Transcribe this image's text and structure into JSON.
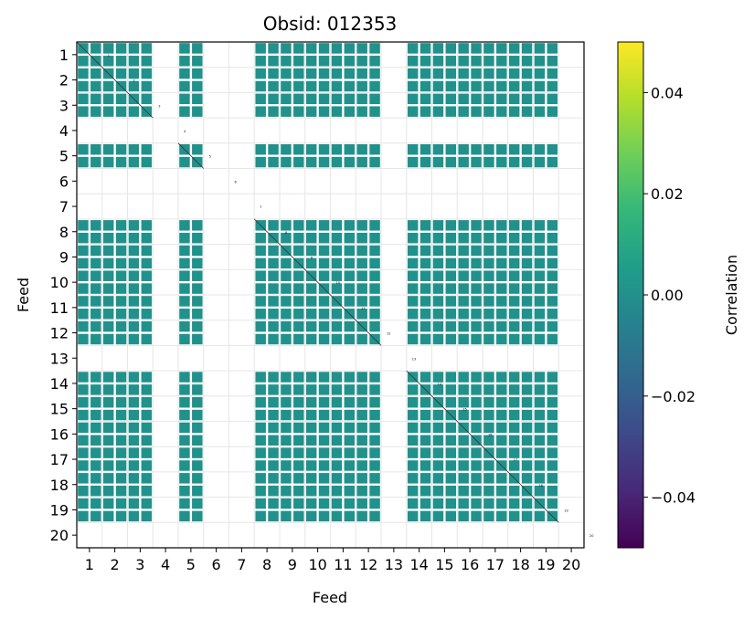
{
  "chart_data": {
    "type": "heatmap",
    "title": "Obsid: 012353",
    "xlabel": "Feed",
    "ylabel": "Feed",
    "x_ticks": [
      "1",
      "2",
      "3",
      "4",
      "5",
      "6",
      "7",
      "8",
      "9",
      "10",
      "11",
      "12",
      "13",
      "14",
      "15",
      "16",
      "17",
      "18",
      "19",
      "20"
    ],
    "y_ticks": [
      "1",
      "2",
      "3",
      "4",
      "5",
      "6",
      "7",
      "8",
      "9",
      "10",
      "11",
      "12",
      "13",
      "14",
      "15",
      "16",
      "17",
      "18",
      "19",
      "20"
    ],
    "feeds": [
      1,
      2,
      3,
      4,
      5,
      6,
      7,
      8,
      9,
      10,
      11,
      12,
      13,
      14,
      15,
      16,
      17,
      18,
      19,
      20
    ],
    "active_feeds": [
      1,
      2,
      3,
      5,
      8,
      9,
      10,
      11,
      12,
      14,
      15,
      16,
      17,
      18,
      19
    ],
    "inactive_feeds": [
      4,
      6,
      7,
      13,
      20
    ],
    "cell_value": 0.0,
    "cell_color": "#21918c",
    "grid": true,
    "colorbar": {
      "label": "Correlation",
      "min": -0.05,
      "max": 0.05,
      "ticks": [
        "0.04",
        "0.02",
        "0.00",
        "−0.02",
        "−0.04"
      ],
      "tick_values": [
        0.04,
        0.02,
        0.0,
        -0.02,
        -0.04
      ],
      "colormap": "viridis",
      "stops": [
        "#440154",
        "#482878",
        "#3e4989",
        "#31688e",
        "#26828e",
        "#1f9e89",
        "#35b779",
        "#6ece58",
        "#b5de2b",
        "#fde725"
      ]
    }
  }
}
